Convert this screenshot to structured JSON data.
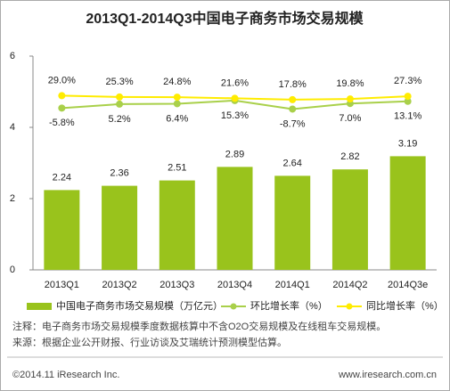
{
  "chart_data": {
    "type": "bar",
    "title": "2013Q1-2014Q3中国电子商务市场交易规模",
    "categories": [
      "2013Q1",
      "2013Q2",
      "2013Q3",
      "2013Q4",
      "2014Q1",
      "2014Q2",
      "2014Q3e"
    ],
    "series": [
      {
        "name": "中国电子商务市场交易规模（万亿元）",
        "type": "bar",
        "color": "#99c31c",
        "values": [
          2.24,
          2.36,
          2.51,
          2.89,
          2.64,
          2.82,
          3.19
        ]
      },
      {
        "name": "环比增长率（%）",
        "type": "line",
        "axis": "y2",
        "color": "#a9d04a",
        "values": [
          -5.8,
          5.2,
          6.4,
          15.3,
          -8.7,
          7.0,
          13.1
        ],
        "value_labels": [
          "-5.8%",
          "5.2%",
          "6.4%",
          "15.3%",
          "-8.7%",
          "7.0%",
          "13.1%"
        ]
      },
      {
        "name": "同比增长率（%）",
        "type": "line",
        "axis": "y2",
        "color": "#ffec00",
        "values": [
          29.0,
          25.3,
          24.8,
          21.6,
          17.8,
          19.8,
          27.3
        ],
        "value_labels": [
          "29.0%",
          "25.3%",
          "24.8%",
          "21.6%",
          "17.8%",
          "19.8%",
          "27.3%"
        ]
      }
    ],
    "ylim": [
      0,
      6
    ],
    "yticks": [
      0,
      2,
      4,
      6
    ],
    "y2lim": [
      -460,
      140
    ],
    "notes": [
      "注释：电子商务市场交易规模季度数据核算中不含O2O交易规模及在线租车交易规模。",
      "来源：根据企业公开财报、行业访谈及艾瑞统计预测模型估算。"
    ],
    "footer": {
      "copyright": "©2014.11 iResearch Inc.",
      "url": "www.iresearch.com.cn"
    }
  }
}
